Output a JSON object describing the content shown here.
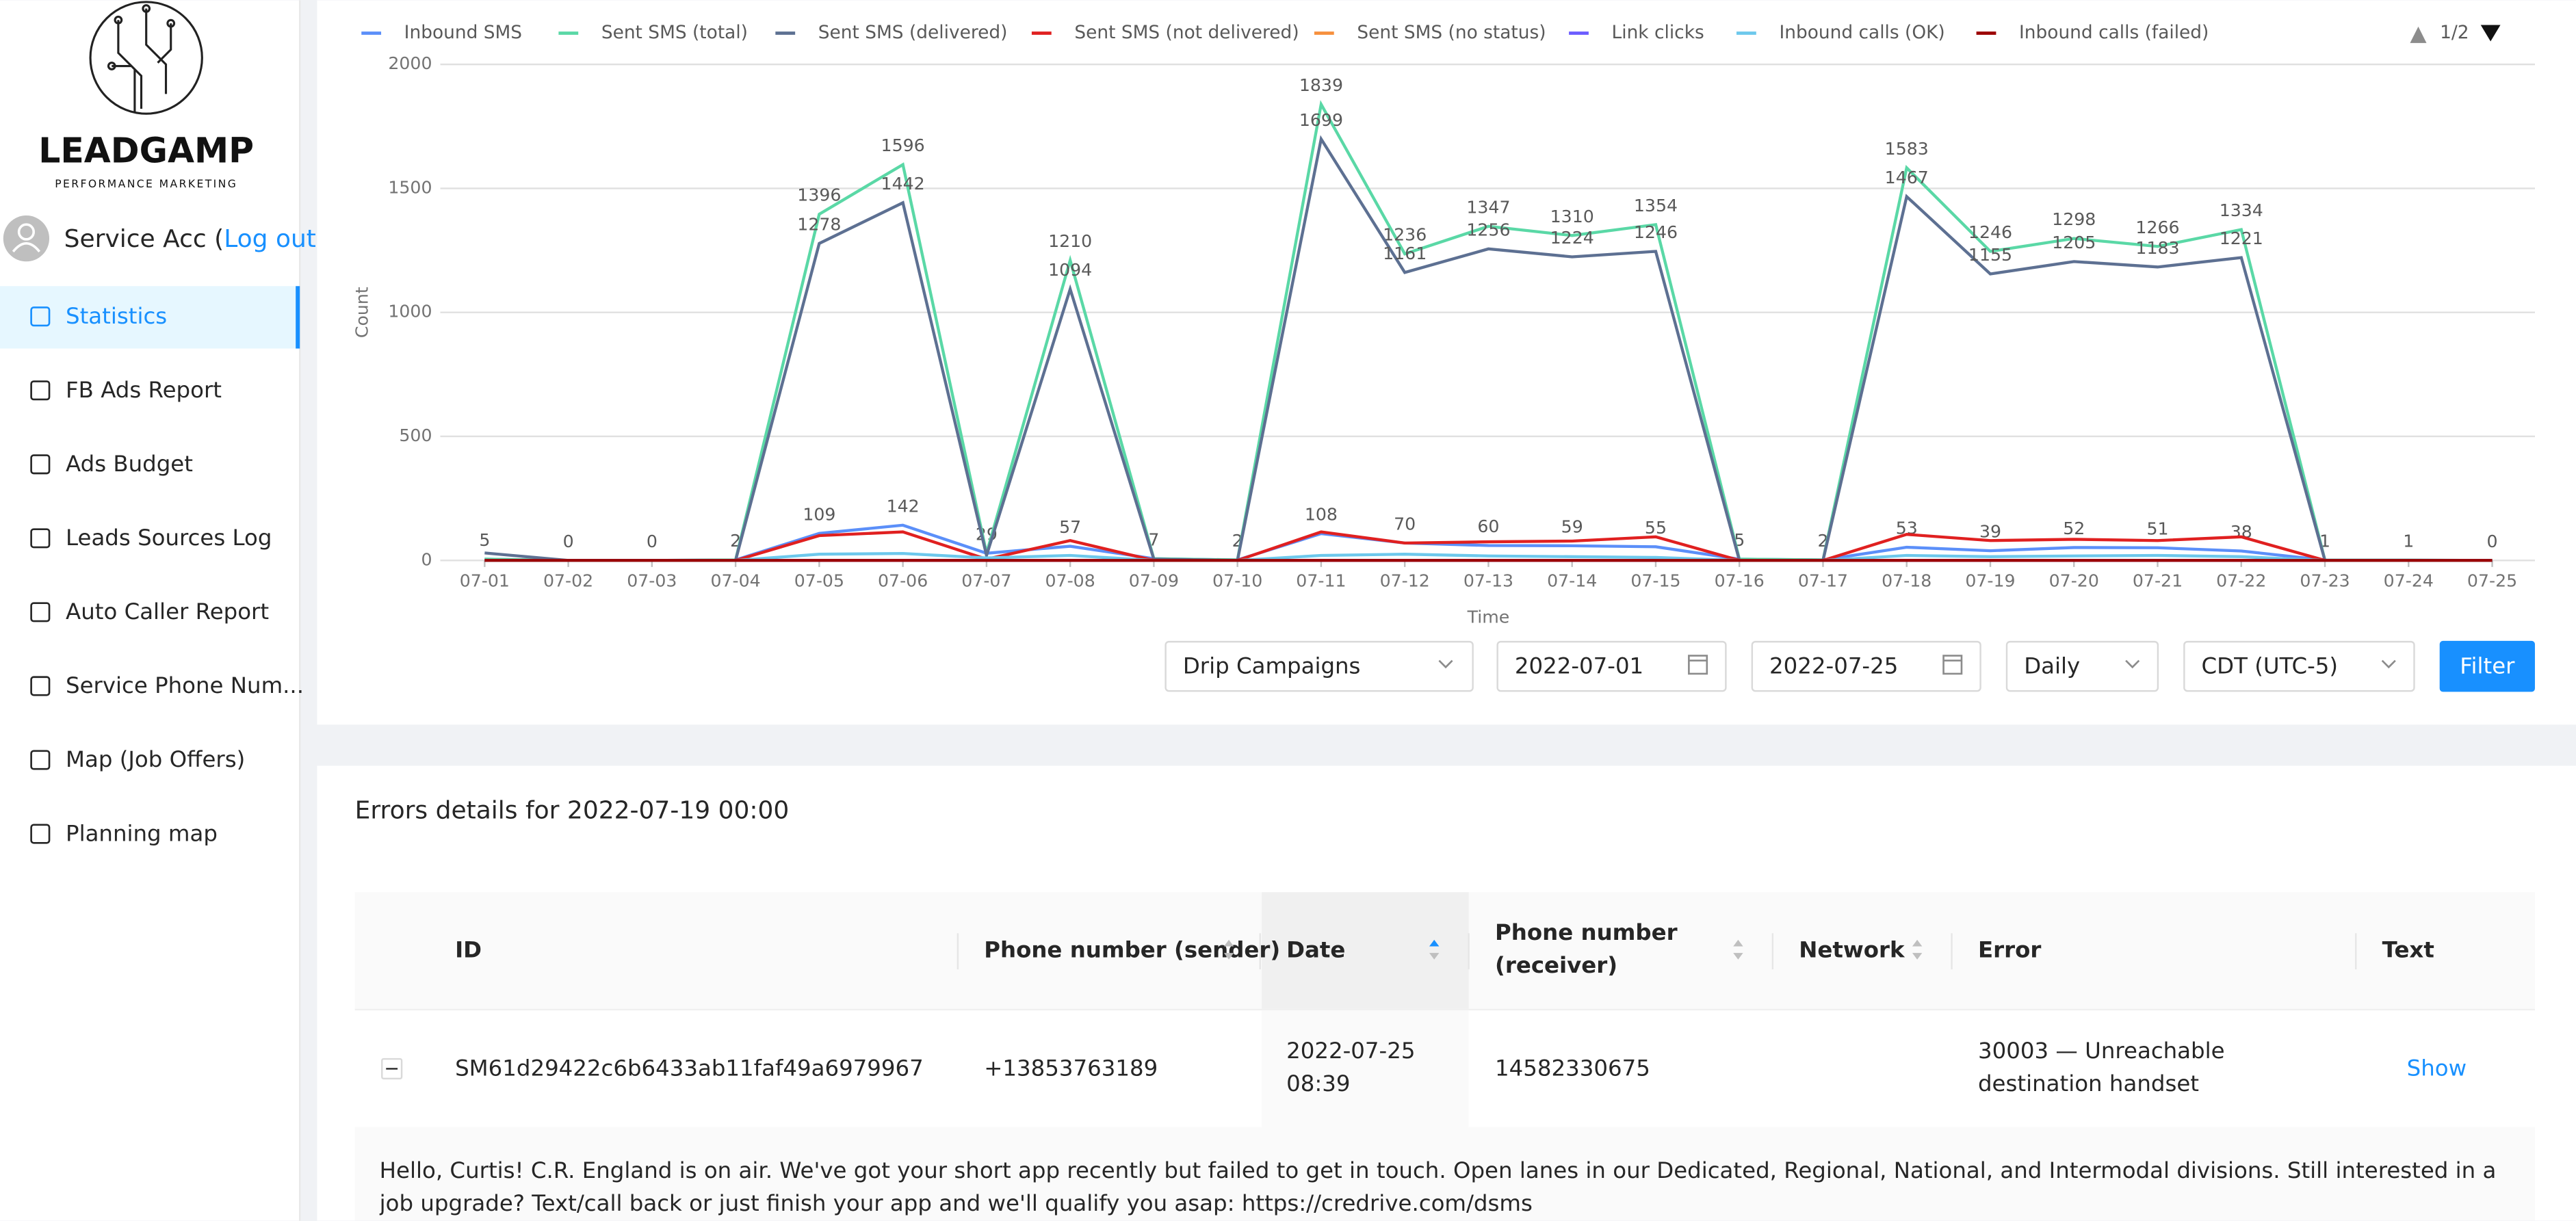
{
  "sidebar": {
    "logo_text": "LEADGAMP",
    "logo_subtitle": "PERFORMANCE MARKETING",
    "user": "Service Acc (",
    "logout": "Log out",
    "user_end": ")",
    "menu": [
      "Statistics",
      "FB Ads Report",
      "Ads Budget",
      "Leads Sources Log",
      "Auto Caller Report",
      "Service Phone Num...",
      "Map (Job Offers)",
      "Planning map"
    ],
    "active": 0
  },
  "chart_data": {
    "type": "line",
    "y_label": "Count",
    "x_label": "Time",
    "legend_page": "1/2",
    "categories": [
      "07-01",
      "07-02",
      "07-03",
      "07-04",
      "07-05",
      "07-06",
      "07-07",
      "07-08",
      "07-09",
      "07-10",
      "07-11",
      "07-12",
      "07-13",
      "07-14",
      "07-15",
      "07-16",
      "07-17",
      "07-18",
      "07-19",
      "07-20",
      "07-21",
      "07-22",
      "07-23",
      "07-24",
      "07-25"
    ],
    "ylim": [
      0,
      2000
    ],
    "yticks": [
      0,
      500,
      1000,
      1500,
      2000
    ],
    "grid": true,
    "series": [
      {
        "name": "Inbound SMS",
        "color": "#5b8ff9",
        "label_min": 0,
        "values": [
          5,
          0,
          0,
          2,
          109,
          142,
          29,
          57,
          7,
          2,
          108,
          70,
          60,
          59,
          55,
          5,
          2,
          53,
          39,
          52,
          51,
          38,
          1,
          1,
          0
        ]
      },
      {
        "name": "Sent SMS (total)",
        "color": "#5ad8a6",
        "label_min": 1000,
        "values": [
          5,
          0,
          0,
          2,
          1396,
          1596,
          29,
          1210,
          7,
          2,
          1839,
          1236,
          1347,
          1310,
          1354,
          5,
          2,
          1583,
          1246,
          1298,
          1266,
          1334,
          1,
          1,
          0
        ]
      },
      {
        "name": "Sent SMS (delivered)",
        "color": "#5d7092",
        "label_min": 1000,
        "values": [
          30,
          0,
          0,
          0,
          1278,
          1442,
          20,
          1094,
          5,
          0,
          1699,
          1161,
          1256,
          1224,
          1246,
          0,
          0,
          1467,
          1155,
          1205,
          1183,
          1221,
          0,
          0,
          0
        ]
      },
      {
        "name": "Sent SMS (not delivered)",
        "color": "#e02020",
        "values": [
          0,
          0,
          0,
          0,
          100,
          115,
          5,
          80,
          0,
          0,
          115,
          70,
          75,
          78,
          95,
          0,
          0,
          105,
          80,
          85,
          80,
          95,
          0,
          0,
          0
        ]
      },
      {
        "name": "Sent SMS (no status)",
        "color": "#f6903d",
        "values": [
          0,
          0,
          0,
          0,
          0,
          0,
          0,
          0,
          0,
          0,
          0,
          0,
          0,
          0,
          0,
          0,
          0,
          0,
          0,
          0,
          0,
          0,
          0,
          0,
          0
        ]
      },
      {
        "name": "Link clicks",
        "color": "#6b5cff",
        "values": [
          0,
          0,
          0,
          0,
          0,
          0,
          0,
          0,
          0,
          0,
          0,
          0,
          0,
          0,
          0,
          0,
          0,
          0,
          0,
          0,
          0,
          0,
          0,
          0,
          0
        ]
      },
      {
        "name": "Inbound calls (OK)",
        "color": "#6dc8ec",
        "values": [
          0,
          0,
          0,
          0,
          25,
          28,
          10,
          20,
          0,
          0,
          20,
          25,
          18,
          15,
          12,
          0,
          0,
          20,
          15,
          18,
          20,
          15,
          0,
          0,
          0
        ]
      },
      {
        "name": "Inbound calls (failed)",
        "color": "#9b0000",
        "values": [
          0,
          0,
          0,
          0,
          0,
          0,
          0,
          0,
          0,
          0,
          0,
          0,
          0,
          0,
          0,
          0,
          0,
          0,
          0,
          0,
          0,
          0,
          0,
          0,
          0
        ]
      }
    ]
  },
  "filters": {
    "campaign": "Drip Campaigns",
    "date_from": "2022-07-01",
    "date_to": "2022-07-25",
    "interval": "Daily",
    "timezone": "CDT (UTC-5)",
    "button": "Filter"
  },
  "errors": {
    "title": "Errors details for 2022-07-19 00:00",
    "columns": [
      "ID",
      "Phone number (sender)",
      "Date",
      "Phone number (receiver)",
      "Network",
      "Error",
      "Text"
    ],
    "rows": [
      [
        "SM61d29422c6b6433ab11faf49a6979967",
        "+13853763189",
        "2022-07-25 08:39",
        "14582330675",
        "",
        "30003 — Unreachable destination handset",
        "Show"
      ]
    ],
    "expanded_text": "Hello, Curtis! C.R. England is on air. We've got your short app recently but failed to get in touch. Open lanes in our Dedicated, Regional, National, and Intermodal divisions. Still interested in a job upgrade? Text/call back or just finish your app and we'll qualify you asap: https://credrive.com/dsms"
  }
}
